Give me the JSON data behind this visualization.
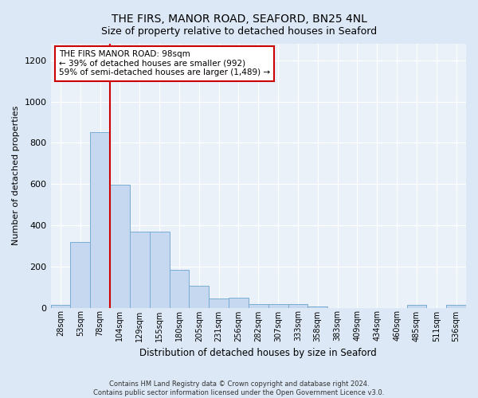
{
  "title": "THE FIRS, MANOR ROAD, SEAFORD, BN25 4NL",
  "subtitle": "Size of property relative to detached houses in Seaford",
  "xlabel": "Distribution of detached houses by size in Seaford",
  "ylabel": "Number of detached properties",
  "bar_labels": [
    "28sqm",
    "53sqm",
    "78sqm",
    "104sqm",
    "129sqm",
    "155sqm",
    "180sqm",
    "205sqm",
    "231sqm",
    "256sqm",
    "282sqm",
    "307sqm",
    "333sqm",
    "358sqm",
    "383sqm",
    "409sqm",
    "434sqm",
    "460sqm",
    "485sqm",
    "511sqm",
    "536sqm"
  ],
  "bar_values": [
    12,
    318,
    853,
    597,
    370,
    370,
    185,
    105,
    45,
    47,
    18,
    17,
    17,
    5,
    0,
    0,
    0,
    0,
    13,
    0,
    13
  ],
  "bar_color": "#c5d8ef",
  "bar_edge_color": "#7aadd4",
  "vline_color": "#cc0000",
  "annotation_text": "THE FIRS MANOR ROAD: 98sqm\n← 39% of detached houses are smaller (992)\n59% of semi-detached houses are larger (1,489) →",
  "annotation_box_color": "#ffffff",
  "annotation_box_edge_color": "#cc0000",
  "ylim": [
    0,
    1280
  ],
  "yticks": [
    0,
    200,
    400,
    600,
    800,
    1000,
    1200
  ],
  "footer_line1": "Contains HM Land Registry data © Crown copyright and database right 2024.",
  "footer_line2": "Contains public sector information licensed under the Open Government Licence v3.0.",
  "bg_color": "#dce8f5",
  "plot_bg_color": "#eaf1f9",
  "title_fontsize": 10,
  "subtitle_fontsize": 9,
  "annotation_fontsize": 7.5,
  "ylabel_fontsize": 8,
  "xlabel_fontsize": 8.5,
  "footer_fontsize": 6,
  "ytick_fontsize": 8,
  "xtick_fontsize": 7
}
